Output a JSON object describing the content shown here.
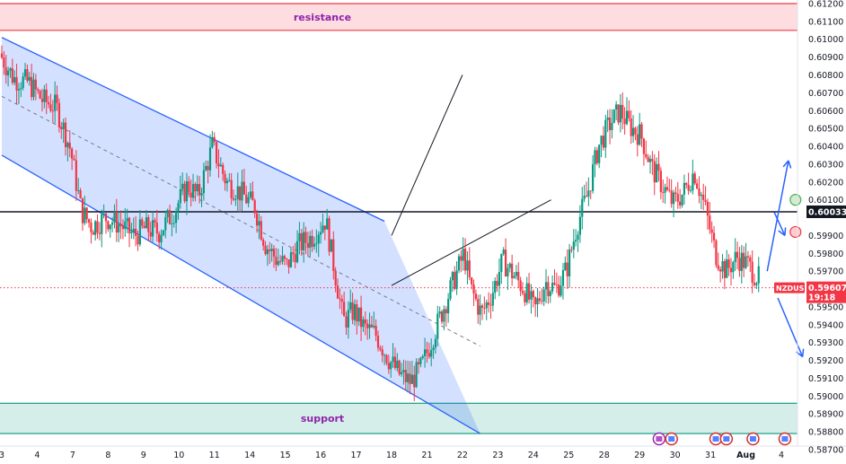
{
  "chart_data": {
    "type": "candlestick",
    "symbol": "NZDUSD",
    "ylim": [
      0.5872,
      0.6122
    ],
    "x_range": [
      3.0,
      4.6
    ],
    "x_ticks": [
      {
        "label": "3",
        "x": 3
      },
      {
        "label": "4",
        "x": 4
      },
      {
        "label": "7",
        "x": 5
      },
      {
        "label": "8",
        "x": 6
      },
      {
        "label": "9",
        "x": 7
      },
      {
        "label": "10",
        "x": 8
      },
      {
        "label": "11",
        "x": 9
      },
      {
        "label": "14",
        "x": 10
      },
      {
        "label": "15",
        "x": 11
      },
      {
        "label": "16",
        "x": 12
      },
      {
        "label": "17",
        "x": 13
      },
      {
        "label": "18",
        "x": 14
      },
      {
        "label": "21",
        "x": 15
      },
      {
        "label": "22",
        "x": 16
      },
      {
        "label": "23",
        "x": 17
      },
      {
        "label": "24",
        "x": 18
      },
      {
        "label": "25",
        "x": 19
      },
      {
        "label": "28",
        "x": 20
      },
      {
        "label": "29",
        "x": 21
      },
      {
        "label": "30",
        "x": 22
      },
      {
        "label": "31",
        "x": 23
      },
      {
        "label": "Aug",
        "x": 24
      },
      {
        "label": "4",
        "x": 25
      }
    ],
    "y_ticks": [
      "0.61200",
      "0.61100",
      "0.61000",
      "0.60900",
      "0.60800",
      "0.60700",
      "0.60600",
      "0.60500",
      "0.60400",
      "0.60300",
      "0.60200",
      "0.60100",
      "0.59900",
      "0.59800",
      "0.59700",
      "0.59500",
      "0.59400",
      "0.59300",
      "0.59200",
      "0.59100",
      "0.59000",
      "0.58900",
      "0.58800",
      "0.58700"
    ],
    "zones": [
      {
        "label": "resistance",
        "from": 0.6105,
        "to": 0.612,
        "color": "#f23645"
      },
      {
        "label": "support",
        "from": 0.5879,
        "to": 0.5896,
        "color": "#089981"
      }
    ],
    "price_path": [
      [
        3.0,
        0.6092
      ],
      [
        3.4,
        0.6078
      ],
      [
        3.8,
        0.6076
      ],
      [
        4.2,
        0.6066
      ],
      [
        4.6,
        0.6062
      ],
      [
        5.0,
        0.6038
      ],
      [
        5.3,
        0.6004
      ],
      [
        5.6,
        0.5995
      ],
      [
        6.0,
        0.6
      ],
      [
        6.4,
        0.5996
      ],
      [
        6.8,
        0.599
      ],
      [
        7.1,
        0.5994
      ],
      [
        7.5,
        0.5992
      ],
      [
        7.9,
        0.6003
      ],
      [
        8.3,
        0.6018
      ],
      [
        8.6,
        0.6012
      ],
      [
        9.0,
        0.604
      ],
      [
        9.4,
        0.602
      ],
      [
        9.8,
        0.6014
      ],
      [
        10.2,
        0.6006
      ],
      [
        10.5,
        0.5985
      ],
      [
        10.8,
        0.5977
      ],
      [
        11.1,
        0.5973
      ],
      [
        11.4,
        0.5984
      ],
      [
        11.8,
        0.5989
      ],
      [
        12.2,
        0.5999
      ],
      [
        12.5,
        0.5965
      ],
      [
        12.7,
        0.5942
      ],
      [
        13.0,
        0.5948
      ],
      [
        13.3,
        0.5938
      ],
      [
        13.6,
        0.5935
      ],
      [
        14.0,
        0.592
      ],
      [
        14.3,
        0.5912
      ],
      [
        14.6,
        0.5908
      ],
      [
        14.9,
        0.5916
      ],
      [
        15.2,
        0.5932
      ],
      [
        15.5,
        0.5948
      ],
      [
        15.8,
        0.5964
      ],
      [
        16.1,
        0.598
      ],
      [
        16.3,
        0.596
      ],
      [
        16.6,
        0.5946
      ],
      [
        16.9,
        0.5958
      ],
      [
        17.2,
        0.5976
      ],
      [
        17.5,
        0.5968
      ],
      [
        17.8,
        0.596
      ],
      [
        18.1,
        0.5948
      ],
      [
        18.4,
        0.5964
      ],
      [
        18.7,
        0.596
      ],
      [
        19.0,
        0.5971
      ],
      [
        19.3,
        0.5996
      ],
      [
        19.6,
        0.6014
      ],
      [
        19.9,
        0.604
      ],
      [
        20.2,
        0.6052
      ],
      [
        20.5,
        0.606
      ],
      [
        20.8,
        0.6051
      ],
      [
        21.1,
        0.6046
      ],
      [
        21.4,
        0.6028
      ],
      [
        21.7,
        0.6018
      ],
      [
        22.0,
        0.6008
      ],
      [
        22.3,
        0.6014
      ],
      [
        22.6,
        0.6026
      ],
      [
        22.9,
        0.6006
      ],
      [
        23.2,
        0.598
      ],
      [
        23.5,
        0.597
      ],
      [
        23.8,
        0.5978
      ],
      [
        24.1,
        0.5974
      ],
      [
        24.4,
        0.5966
      ]
    ],
    "horizontal_levels": [
      {
        "price": 0.60033,
        "label": "0.60033",
        "style": "solid",
        "color": "#131722"
      },
      {
        "price": 0.59607,
        "label": "0.59607",
        "style": "dotted",
        "color": "#f23645"
      }
    ],
    "last_price": {
      "symbol": "NZDUSD",
      "price": "0.59607",
      "countdown": "19:18"
    },
    "channel": {
      "upper": [
        [
          3.0,
          0.6101
        ],
        [
          13.8,
          0.5998
        ]
      ],
      "lower": [
        [
          3.0,
          0.6035
        ],
        [
          16.5,
          0.5879
        ]
      ],
      "mid": [
        [
          3.0,
          0.6068
        ],
        [
          16.5,
          0.5928
        ]
      ],
      "fill_color": "#2962ff"
    },
    "trend_lines": [
      {
        "from": [
          14.0,
          0.599
        ],
        "to": [
          16.0,
          0.608
        ]
      },
      {
        "from": [
          14.0,
          0.5962
        ],
        "to": [
          18.5,
          0.601
        ]
      }
    ],
    "forecast_arrows": [
      {
        "from": [
          24.6,
          0.597
        ],
        "to": [
          25.2,
          0.6032
        ]
      },
      {
        "from": [
          24.8,
          0.6003
        ],
        "to": [
          25.1,
          0.599
        ]
      },
      {
        "from": [
          24.9,
          0.5955
        ],
        "to": [
          25.6,
          0.5922
        ]
      }
    ],
    "markers": [
      {
        "color": "#4caf50",
        "price": 0.601
      },
      {
        "color": "#f23645",
        "price": 0.5992
      }
    ]
  }
}
